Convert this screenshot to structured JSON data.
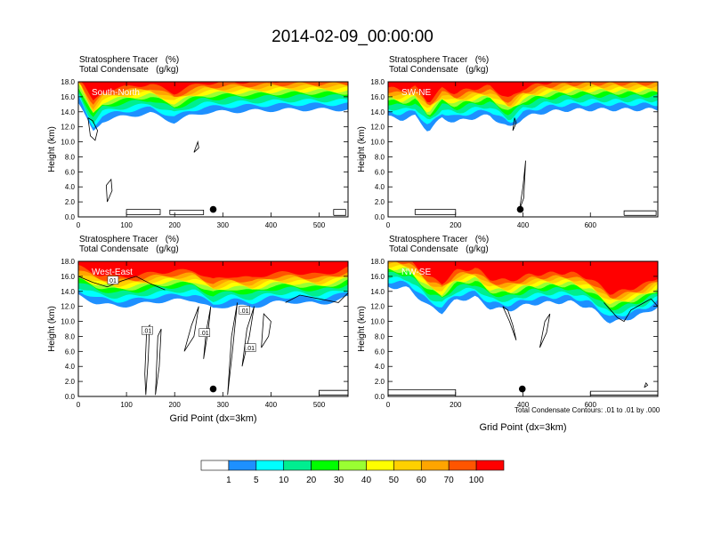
{
  "figure": {
    "title": "2014-02-09_00:00:00",
    "contour_note": "Total Condensate Contours: .01 to .01 by .000"
  },
  "colors": {
    "bands": [
      "#ffffff",
      "#1e90ff",
      "#00ffff",
      "#00ee90",
      "#00ff00",
      "#9aff32",
      "#ffff00",
      "#ffd000",
      "#ffa500",
      "#ff5500",
      "#ff0000"
    ],
    "contour_line": "#000000",
    "marker": "#000000"
  },
  "chart_data": [
    {
      "type": "heatmap",
      "name": "South-North",
      "label_line1": "Stratosphere Tracer   (%)",
      "label_line2": "Total Condensate   (g/kg)",
      "cross_section": "South-North",
      "ylabel": "Height (km)",
      "xlabel": "",
      "xlim": [
        0,
        560
      ],
      "ylim": [
        0,
        18
      ],
      "xticks": [
        0,
        100,
        200,
        300,
        400,
        500
      ],
      "yticks": [
        0,
        2,
        4,
        6,
        8,
        10,
        12,
        14,
        16,
        18
      ],
      "ytick_labels": [
        "0.0",
        "2.0",
        "4.0",
        "6.0",
        "8.0",
        "10.0",
        "12.0",
        "14.0",
        "16.0",
        "18.0"
      ],
      "marker": {
        "x": 280,
        "y": 1.0
      },
      "profile_x": [
        0,
        30,
        50,
        80,
        110,
        150,
        200,
        230,
        260,
        300,
        350,
        400,
        450,
        500,
        560
      ],
      "base_km": [
        15.2,
        11.3,
        12.8,
        13.2,
        13.5,
        13.8,
        12.6,
        13.4,
        13.9,
        14.0,
        14.1,
        14.2,
        14.3,
        14.3,
        14.3
      ],
      "contours": [
        {
          "x": [
            20,
            30,
            40,
            35,
            25,
            20
          ],
          "y": [
            13.2,
            12.8,
            11.5,
            10.2,
            10.8,
            13.2
          ]
        },
        {
          "x": [
            240,
            250,
            248,
            240
          ],
          "y": [
            8.6,
            9.2,
            10.0,
            8.6
          ]
        },
        {
          "x": [
            60,
            70,
            68,
            58,
            60
          ],
          "y": [
            2.0,
            3.5,
            5.0,
            4.2,
            2.0
          ]
        },
        {
          "x": [
            100,
            170,
            170,
            100,
            100
          ],
          "y": [
            0.3,
            0.3,
            1.0,
            1.0,
            0.3
          ]
        },
        {
          "x": [
            190,
            260,
            260,
            190,
            190
          ],
          "y": [
            0.3,
            0.3,
            0.9,
            0.9,
            0.3
          ]
        },
        {
          "x": [
            530,
            555,
            555,
            530,
            530
          ],
          "y": [
            0.2,
            0.2,
            1.0,
            1.0,
            0.2
          ]
        }
      ]
    },
    {
      "type": "heatmap",
      "name": "SW-NE",
      "label_line1": "Stratosphere Tracer   (%)",
      "label_line2": "Total Condensate   (g/kg)",
      "cross_section": "SW-NE",
      "ylabel": "Height (km)",
      "xlabel": "",
      "xlim": [
        0,
        800
      ],
      "ylim": [
        0,
        18
      ],
      "xticks": [
        0,
        200,
        400,
        600
      ],
      "yticks": [
        0,
        2,
        4,
        6,
        8,
        10,
        12,
        14,
        16,
        18
      ],
      "ytick_labels": [
        "0.0",
        "2.0",
        "4.0",
        "6.0",
        "8.0",
        "10.0",
        "12.0",
        "14.0",
        "16.0",
        "18.0"
      ],
      "marker": {
        "x": 392,
        "y": 1.0
      },
      "profile_x": [
        0,
        40,
        80,
        120,
        160,
        200,
        240,
        300,
        360,
        400,
        460,
        520,
        600,
        700,
        800
      ],
      "base_km": [
        13.3,
        13.0,
        13.4,
        11.4,
        13.2,
        12.6,
        13.1,
        13.5,
        11.8,
        13.2,
        13.9,
        14.2,
        14.3,
        14.3,
        14.3
      ],
      "contours": [
        {
          "x": [
            390,
            402,
            408,
            400,
            390
          ],
          "y": [
            1.0,
            2.5,
            7.5,
            4.0,
            1.0
          ]
        },
        {
          "x": [
            80,
            200,
            200,
            80,
            80
          ],
          "y": [
            0.3,
            0.3,
            1.0,
            1.0,
            0.3
          ]
        },
        {
          "x": [
            700,
            795,
            795,
            700,
            700
          ],
          "y": [
            0.2,
            0.2,
            0.8,
            0.8,
            0.2
          ]
        },
        {
          "x": [
            370,
            380,
            375,
            370
          ],
          "y": [
            11.5,
            12.5,
            13.2,
            11.5
          ]
        }
      ]
    },
    {
      "type": "heatmap",
      "name": "West-East",
      "label_line1": "Stratosphere Tracer   (%)",
      "label_line2": "Total Condensate   (g/kg)",
      "cross_section": "West-East",
      "ylabel": "Height (km)",
      "xlabel": "Grid Point (dx=3km)",
      "xlim": [
        0,
        560
      ],
      "ylim": [
        0,
        18
      ],
      "xticks": [
        0,
        100,
        200,
        300,
        400,
        500
      ],
      "yticks": [
        0,
        2,
        4,
        6,
        8,
        10,
        12,
        14,
        16,
        18
      ],
      "ytick_labels": [
        "0.0",
        "2.0",
        "4.0",
        "6.0",
        "8.0",
        "10.0",
        "12.0",
        "14.0",
        "16.0",
        "18.0"
      ],
      "marker": {
        "x": 280,
        "y": 1.0
      },
      "profile_x": [
        0,
        40,
        80,
        120,
        160,
        200,
        240,
        280,
        320,
        360,
        400,
        450,
        500,
        540,
        560
      ],
      "base_km": [
        13.4,
        12.4,
        12.0,
        12.2,
        12.6,
        12.8,
        12.9,
        11.6,
        12.2,
        11.8,
        12.5,
        12.6,
        12.3,
        12.8,
        13.2
      ],
      "contour_labels": [
        {
          "x": 72,
          "y": 15.5,
          "text": "01"
        },
        {
          "x": 143,
          "y": 8.8,
          "text": ".01"
        },
        {
          "x": 262,
          "y": 8.5,
          "text": ".01"
        },
        {
          "x": 345,
          "y": 11.5,
          "text": ".01"
        },
        {
          "x": 357,
          "y": 6.5,
          "text": ".01"
        }
      ],
      "contours": [
        {
          "x": [
            0,
            30,
            60,
            90,
            120,
            150,
            180
          ],
          "y": [
            16.0,
            15.2,
            14.6,
            15.4,
            16.0,
            15.0,
            14.2
          ]
        },
        {
          "x": [
            140,
            145,
            148,
            142,
            138,
            140
          ],
          "y": [
            0.2,
            5.0,
            9.5,
            9.0,
            3.0,
            0.2
          ]
        },
        {
          "x": [
            160,
            168,
            172,
            165,
            160
          ],
          "y": [
            0.2,
            4.0,
            9.0,
            8.0,
            0.2
          ]
        },
        {
          "x": [
            220,
            240,
            250,
            235,
            220
          ],
          "y": [
            6.0,
            8.0,
            12.0,
            9.5,
            6.0
          ]
        },
        {
          "x": [
            260,
            270,
            275,
            265,
            260
          ],
          "y": [
            5.0,
            9.0,
            12.0,
            8.5,
            5.0
          ]
        },
        {
          "x": [
            310,
            320,
            330,
            318,
            310
          ],
          "y": [
            0.2,
            6.0,
            12.5,
            8.0,
            0.2
          ]
        },
        {
          "x": [
            340,
            355,
            365,
            350,
            340
          ],
          "y": [
            4.0,
            8.0,
            12.0,
            9.0,
            4.0
          ]
        },
        {
          "x": [
            380,
            395,
            400,
            385,
            380
          ],
          "y": [
            6.5,
            8.0,
            10.0,
            11.0,
            6.5
          ]
        },
        {
          "x": [
            430,
            460,
            500,
            540,
            560
          ],
          "y": [
            12.5,
            13.5,
            13.0,
            12.5,
            13.8
          ]
        },
        {
          "x": [
            500,
            560,
            560,
            500,
            500
          ],
          "y": [
            0.2,
            0.2,
            0.8,
            0.8,
            0.2
          ]
        }
      ]
    },
    {
      "type": "heatmap",
      "name": "NW-SE",
      "label_line1": "Stratosphere Tracer   (%)",
      "label_line2": "Total Condensate   (g/kg)",
      "cross_section": "NW-SE",
      "ylabel": "Height (km)",
      "xlabel": "Grid Point (dx=3km)",
      "xlim": [
        0,
        800
      ],
      "ylim": [
        0,
        18
      ],
      "xticks": [
        0,
        200,
        400,
        600
      ],
      "yticks": [
        0,
        2,
        4,
        6,
        8,
        10,
        12,
        14,
        16,
        18
      ],
      "ytick_labels": [
        "0.0",
        "2.0",
        "4.0",
        "6.0",
        "8.0",
        "10.0",
        "12.0",
        "14.0",
        "16.0",
        "18.0"
      ],
      "marker": {
        "x": 398,
        "y": 1.0
      },
      "profile_x": [
        0,
        60,
        120,
        160,
        200,
        260,
        300,
        360,
        420,
        480,
        540,
        600,
        660,
        700,
        760,
        800
      ],
      "base_km": [
        14.6,
        14.4,
        12.0,
        11.2,
        12.8,
        13.2,
        11.8,
        11.5,
        12.3,
        12.5,
        12.6,
        11.8,
        9.8,
        10.2,
        11.0,
        12.0
      ],
      "contours": [
        {
          "x": [
            340,
            360,
            380,
            370,
            355,
            340
          ],
          "y": [
            12.0,
            10.0,
            7.5,
            9.5,
            11.5,
            12.0
          ]
        },
        {
          "x": [
            450,
            470,
            480,
            465,
            450
          ],
          "y": [
            6.5,
            8.5,
            11.0,
            10.0,
            6.5
          ]
        },
        {
          "x": [
            640,
            680,
            700,
            720,
            760,
            780,
            800
          ],
          "y": [
            12.5,
            10.5,
            10.0,
            11.5,
            12.5,
            13.0,
            12.0
          ]
        },
        {
          "x": [
            0,
            200,
            200,
            0,
            0
          ],
          "y": [
            0.2,
            0.2,
            0.9,
            0.9,
            0.2
          ]
        },
        {
          "x": [
            600,
            800,
            800,
            600,
            600
          ],
          "y": [
            0.2,
            0.2,
            0.7,
            0.7,
            0.2
          ]
        },
        {
          "x": [
            760,
            770,
            765,
            760
          ],
          "y": [
            1.2,
            1.5,
            1.8,
            1.2
          ]
        }
      ]
    }
  ],
  "colorbar": {
    "labels": [
      "1",
      "5",
      "10",
      "20",
      "30",
      "40",
      "50",
      "60",
      "70",
      "100"
    ]
  }
}
